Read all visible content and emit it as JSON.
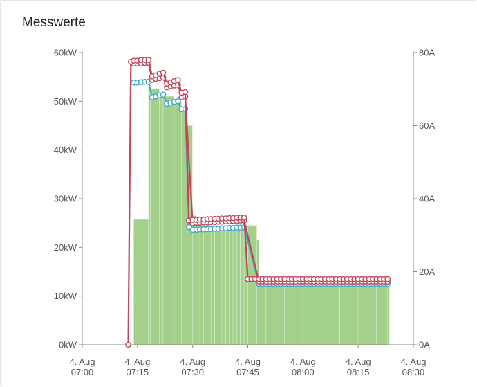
{
  "card": {
    "title": "Messwerte"
  },
  "chart_data": {
    "type": "line",
    "title": "Messwerte",
    "x_ticks": [
      [
        "4. Aug",
        "07:00"
      ],
      [
        "4. Aug",
        "07:15"
      ],
      [
        "4. Aug",
        "07:30"
      ],
      [
        "4. Aug",
        "07:45"
      ],
      [
        "4. Aug",
        "08:00"
      ],
      [
        "4. Aug",
        "08:15"
      ],
      [
        "4. Aug",
        "08:30"
      ]
    ],
    "x_range_minutes": [
      0,
      90
    ],
    "y_left": {
      "unit": "kW",
      "ylim": [
        0,
        60
      ],
      "ticks": [
        "0kW",
        "10kW",
        "20kW",
        "30kW",
        "40kW",
        "50kW",
        "60kW"
      ]
    },
    "y_right": {
      "unit": "A",
      "ylim": [
        0,
        80
      ],
      "ticks": [
        "0A",
        "20A",
        "40A",
        "60A",
        "80A"
      ]
    },
    "series": [
      {
        "type": "bar",
        "axis": "left",
        "color": "#a3d18c",
        "x": [
          12.5,
          14,
          18,
          18.5,
          21,
          22,
          23,
          25,
          26,
          27,
          28.5,
          30,
          31,
          32,
          33,
          34,
          35,
          36,
          37,
          38,
          39,
          40,
          41,
          42,
          43,
          44,
          45,
          47.5,
          48,
          50,
          55,
          60,
          65,
          70,
          75,
          80,
          83
        ],
        "values": [
          0,
          25.7,
          53.5,
          52.5,
          51.5,
          51,
          51,
          50,
          50,
          48,
          45,
          26.5,
          24.5,
          24.5,
          24.5,
          24.5,
          24.5,
          24.5,
          24.5,
          24.5,
          24.5,
          24.5,
          24.5,
          24.5,
          24.5,
          24.5,
          24.5,
          21.5,
          12.5,
          12.5,
          12.5,
          12.5,
          12.5,
          12.5,
          12.5,
          12.5,
          12.5
        ]
      },
      {
        "type": "line",
        "axis": "right",
        "color": "#c0475a",
        "x": [
          12.5,
          13.2,
          14,
          15,
          16,
          17,
          18,
          19,
          20,
          21,
          22,
          23,
          24,
          25,
          26,
          27,
          28,
          29,
          30,
          31,
          32,
          33,
          34,
          35,
          36,
          37,
          38,
          39,
          40,
          41,
          42,
          43,
          44,
          45,
          46,
          47,
          48,
          49,
          50,
          51,
          52,
          53,
          54,
          55,
          56,
          57,
          58,
          59,
          60,
          61,
          62,
          63,
          64,
          65,
          66,
          67,
          68,
          69,
          70,
          71,
          72,
          73,
          74,
          75,
          76,
          77,
          78,
          79,
          80,
          81,
          82,
          83
        ],
        "values": [
          0,
          77.5,
          77.8,
          77.8,
          78,
          78,
          78,
          73.5,
          73.8,
          74.2,
          74.5,
          71.5,
          71.8,
          72.2,
          72.5,
          69,
          69.2,
          34,
          34.2,
          34.2,
          34.3,
          34.3,
          34.4,
          34.4,
          34.5,
          34.5,
          34.6,
          34.6,
          34.7,
          34.7,
          34.8,
          34.8,
          34.8,
          18,
          18,
          18,
          18,
          18,
          18,
          18,
          18,
          18,
          18,
          18,
          18,
          18,
          18,
          18,
          18,
          18,
          18,
          18,
          18,
          18,
          18,
          18,
          18,
          18,
          18,
          18,
          18,
          18,
          18,
          18,
          18,
          18,
          18,
          18,
          18,
          18,
          18,
          18
        ]
      },
      {
        "type": "line",
        "axis": "right",
        "color": "#c0475a",
        "x": [
          14,
          15,
          16,
          17,
          18,
          19,
          20,
          21,
          22,
          23,
          24,
          25,
          26,
          27,
          28,
          30,
          31,
          32,
          33,
          34,
          35,
          36,
          37,
          38,
          39,
          40,
          41,
          42,
          43,
          44,
          48,
          49,
          50,
          51,
          52,
          53,
          54,
          55,
          56,
          57,
          58,
          59,
          60,
          61,
          62,
          63,
          64,
          65,
          66,
          67,
          68,
          69,
          70,
          71,
          72,
          73,
          74,
          75,
          76,
          77,
          78,
          79,
          80,
          81,
          82,
          83
        ],
        "values": [
          77,
          77,
          77,
          77.2,
          77.2,
          72.5,
          72.8,
          73,
          73.2,
          70.5,
          70.8,
          71,
          71.2,
          67.8,
          68,
          33.3,
          33.4,
          33.4,
          33.5,
          33.5,
          33.6,
          33.6,
          33.7,
          33.7,
          33.8,
          33.8,
          33.9,
          33.9,
          34,
          34,
          17.3,
          17.3,
          17.3,
          17.3,
          17.3,
          17.3,
          17.3,
          17.3,
          17.3,
          17.3,
          17.3,
          17.3,
          17.3,
          17.3,
          17.3,
          17.3,
          17.3,
          17.3,
          17.3,
          17.3,
          17.3,
          17.3,
          17.3,
          17.3,
          17.3,
          17.3,
          17.3,
          17.3,
          17.3,
          17.3,
          17.3,
          17.3,
          17.3,
          17.3,
          17.3,
          17.3
        ]
      },
      {
        "type": "line",
        "axis": "right",
        "color": "#3ea9cf",
        "x": [
          14,
          15,
          16,
          17,
          18,
          19,
          20,
          21,
          22,
          23,
          24,
          25,
          26,
          27,
          28,
          29,
          30,
          31,
          32,
          33,
          34,
          35,
          36,
          37,
          38,
          39,
          40,
          41,
          42,
          43,
          44,
          48,
          49,
          50,
          51,
          52,
          53,
          54,
          55,
          56,
          57,
          58,
          59,
          60,
          61,
          62,
          63,
          64,
          65,
          66,
          67,
          68,
          69,
          70,
          71,
          72,
          73,
          74,
          75,
          76,
          77,
          78,
          79,
          80,
          81,
          82,
          83
        ],
        "values": [
          71.8,
          71.8,
          71.9,
          72,
          72,
          67.8,
          68,
          68.3,
          68.5,
          66,
          66.3,
          66.5,
          66.7,
          64.5,
          64.6,
          32.2,
          31.5,
          31.5,
          31.6,
          31.6,
          31.7,
          31.7,
          31.8,
          31.8,
          31.9,
          31.9,
          32,
          32,
          32.1,
          32.1,
          32.2,
          16.7,
          16.7,
          16.7,
          16.7,
          16.7,
          16.7,
          16.7,
          16.7,
          16.7,
          16.7,
          16.7,
          16.7,
          16.7,
          16.7,
          16.7,
          16.7,
          16.7,
          16.7,
          16.7,
          16.7,
          16.7,
          16.7,
          16.7,
          16.7,
          16.7,
          16.7,
          16.7,
          16.7,
          16.7,
          16.7,
          16.7,
          16.7,
          16.7,
          16.7,
          16.7,
          16.7
        ]
      }
    ],
    "grid": false,
    "legend": "none"
  }
}
